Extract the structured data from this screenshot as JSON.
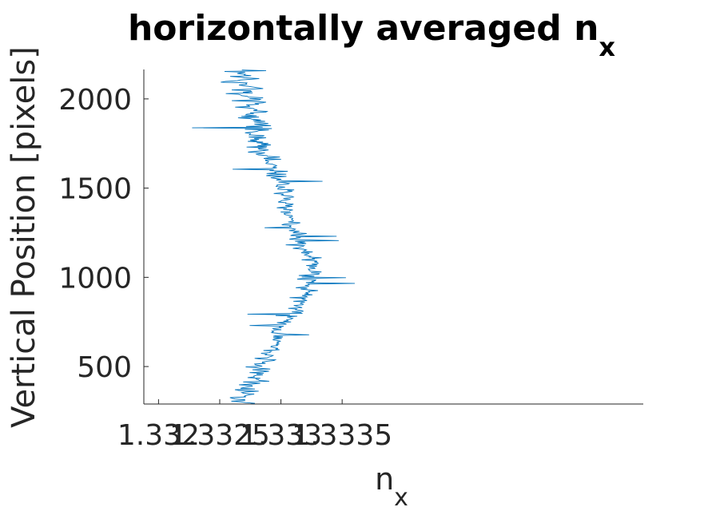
{
  "chart_data": {
    "type": "line",
    "title": "horizontally averaged n",
    "title_subscript": "x",
    "xlabel": "n",
    "xlabel_subscript": "x",
    "ylabel": "Vertical Position [pixels]",
    "xlim": [
      1.33188,
      1.33596
    ],
    "ylim": [
      290,
      2165
    ],
    "xticks": [
      1.332,
      1.3325,
      1.333,
      1.3335
    ],
    "xtick_labels": [
      "1.332",
      "1.3325",
      "1.333",
      "1.3335"
    ],
    "yticks": [
      500,
      1000,
      1500,
      2000
    ],
    "ytick_labels": [
      "500",
      "1000",
      "1500",
      "2000"
    ],
    "grid": false,
    "legend": "none",
    "series": [
      {
        "color": "#0072BD",
        "y_start": 290,
        "y_step": 4,
        "x_envelope": [
          {
            "y": 290,
            "center": 1.33265,
            "spread": 0.00018
          },
          {
            "y": 400,
            "center": 1.33275,
            "spread": 0.00016
          },
          {
            "y": 500,
            "center": 1.33285,
            "spread": 0.00013
          },
          {
            "y": 600,
            "center": 1.33293,
            "spread": 0.0001
          },
          {
            "y": 700,
            "center": 1.33297,
            "spread": 9e-05
          },
          {
            "y": 800,
            "center": 1.3331,
            "spread": 0.00012
          },
          {
            "y": 900,
            "center": 1.3332,
            "spread": 0.00013
          },
          {
            "y": 1000,
            "center": 1.33325,
            "spread": 0.00011
          },
          {
            "y": 1100,
            "center": 1.33325,
            "spread": 0.0001
          },
          {
            "y": 1200,
            "center": 1.33315,
            "spread": 0.00011
          },
          {
            "y": 1300,
            "center": 1.33308,
            "spread": 0.0001
          },
          {
            "y": 1400,
            "center": 1.33305,
            "spread": 0.0001
          },
          {
            "y": 1500,
            "center": 1.33303,
            "spread": 0.00011
          },
          {
            "y": 1600,
            "center": 1.33293,
            "spread": 0.00013
          },
          {
            "y": 1700,
            "center": 1.33283,
            "spread": 0.00014
          },
          {
            "y": 1800,
            "center": 1.33278,
            "spread": 0.00016
          },
          {
            "y": 1900,
            "center": 1.3328,
            "spread": 0.00018
          },
          {
            "y": 2000,
            "center": 1.33275,
            "spread": 0.0002
          },
          {
            "y": 2100,
            "center": 1.3327,
            "spread": 0.00022
          },
          {
            "y": 2165,
            "center": 1.33268,
            "spread": 0.00022
          }
        ]
      }
    ]
  }
}
